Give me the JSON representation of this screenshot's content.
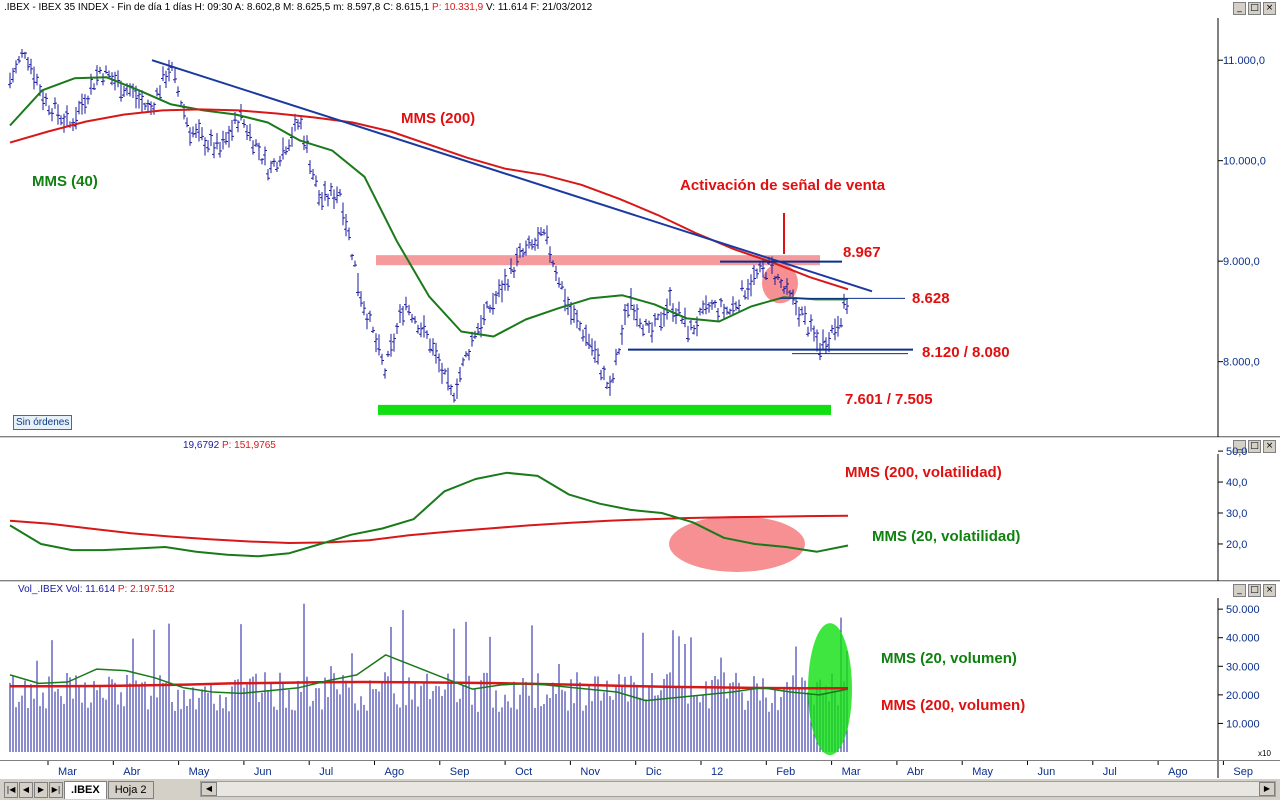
{
  "header_main": {
    "prefix": ".IBEX - IBEX 35 INDEX - Fin de día 1 días  H: 09:30  A: 8.602,8  M: 8.625,5  m: 8.597,8  C: 8.615,1",
    "p_text": "P: 10.331,9",
    "suffix": "V: 11.614  F: 21/03/2012"
  },
  "header_vol": {
    "value": "19,6792",
    "p_text": "P: 151,9765"
  },
  "header_volume": {
    "name": "Vol_.IBEX  Vol: 11.614",
    "p_text": "P: 2.197.512"
  },
  "badge": "Sin órdenes",
  "window_buttons": [
    "_",
    "□",
    "×"
  ],
  "nav_buttons": [
    "|◀",
    "◀",
    "▶",
    "▶|"
  ],
  "sheet_tabs": [
    ".IBEX",
    "Hoja 2"
  ],
  "colors": {
    "bars": "#1a1aa0",
    "mms40": "#1a7a1a",
    "mms200": "#d81818",
    "trend": "#1a3aa0",
    "annot": "#e01010",
    "green_annot": "#108010"
  },
  "chart_data": [
    {
      "type": "line",
      "title": "",
      "xlabel": "",
      "ylabel": "",
      "x_ticks": [
        "Mar",
        "Abr",
        "May",
        "Jun",
        "Jul",
        "Ago",
        "Sep",
        "Oct",
        "Nov",
        "Dic",
        "12",
        "Feb",
        "Mar",
        "Abr",
        "May",
        "Jun",
        "Jul",
        "Ago",
        "Sep"
      ],
      "y_ticks": [
        8000,
        9000,
        10000,
        11000
      ],
      "y_tick_labels": [
        "8.000,0",
        "9.000,0",
        "10.000,0",
        "11.000,0"
      ],
      "ylim": [
        7300,
        11400
      ],
      "series": [
        {
          "name": "MMS (40)",
          "values": [
            10350,
            10700,
            10820,
            10830,
            10700,
            10560,
            10500,
            10460,
            10380,
            10200,
            10100,
            9840,
            9200,
            8650,
            8300,
            8250,
            8420,
            8530,
            8630,
            8660,
            8570,
            8430,
            8400,
            8550,
            8640,
            8620,
            8620
          ]
        },
        {
          "name": "MMS (200)",
          "values": [
            10180,
            10290,
            10390,
            10460,
            10500,
            10510,
            10500,
            10470,
            10430,
            10380,
            10290,
            10160,
            10030,
            9920,
            9860,
            9760,
            9620,
            9460,
            9280,
            9120,
            8990,
            8840,
            8720
          ]
        }
      ],
      "annotations": [
        {
          "text": "MMS (200)",
          "color": "#e01010"
        },
        {
          "text": "MMS (40)",
          "color": "#108010"
        },
        {
          "text": "Activación de señal de venta",
          "color": "#e01010"
        },
        {
          "text": "8.967",
          "value": 8967,
          "color": "#e01010"
        },
        {
          "text": "8.628",
          "value": 8628,
          "color": "#e01010"
        },
        {
          "text": "8.120 / 8.080",
          "value": 8120,
          "color": "#e01010"
        },
        {
          "text": "7.601 / 7.505",
          "value": 7550,
          "color": "#e01010"
        }
      ]
    },
    {
      "type": "line",
      "title": "",
      "y_ticks": [
        20,
        30,
        40,
        50
      ],
      "y_tick_labels": [
        "20,0",
        "30,0",
        "40,0",
        "50,0"
      ],
      "ylim": [
        9,
        51
      ],
      "series": [
        {
          "name": "MMS (200, volatilidad)",
          "values": [
            27.5,
            26.5,
            25,
            23.5,
            22.4,
            21.5,
            20.8,
            20.3,
            20.5,
            21.2,
            22.8,
            24.0,
            25.0,
            26.0,
            26.8,
            27.5,
            28.0,
            28.4,
            28.6,
            28.8,
            29.0,
            29.1
          ]
        },
        {
          "name": "MMS (20, volatilidad)",
          "values": [
            26,
            20,
            18,
            18,
            18.5,
            19,
            17.5,
            16.5,
            16,
            17,
            20,
            23,
            25,
            28,
            37,
            41,
            43,
            42,
            36,
            33,
            31,
            30,
            27,
            22,
            20,
            19,
            17.5,
            19.5
          ]
        }
      ],
      "annotations": [
        {
          "text": "MMS (200, volatilidad)",
          "color": "#e01010"
        },
        {
          "text": "MMS (20, volatilidad)",
          "color": "#108010"
        }
      ]
    },
    {
      "type": "bar",
      "title": "",
      "y_ticks": [
        10000,
        20000,
        30000,
        40000,
        50000
      ],
      "y_tick_labels": [
        "10.000",
        "20.000",
        "30.000",
        "40.000",
        "50.000"
      ],
      "ylim": [
        0,
        56000
      ],
      "multiplier_label": "x10",
      "series": [
        {
          "name": "MMS (20, volumen)",
          "values": [
            27000,
            24000,
            24500,
            29000,
            28500,
            26000,
            22500,
            21000,
            20500,
            21500,
            22500,
            25000,
            27000,
            34000,
            30000,
            26000,
            22000,
            23500,
            24000,
            23000,
            22000,
            21000,
            18000,
            19000,
            20000,
            21000,
            22500,
            21000,
            20000,
            22000
          ]
        },
        {
          "name": "MMS (200, volumen)",
          "values": [
            23000,
            23000,
            23100,
            23300,
            23600,
            24000,
            24200,
            24400,
            24500,
            24400,
            24300,
            24100,
            23800,
            23500,
            23100,
            22800,
            22600,
            22400,
            22300,
            22300
          ]
        }
      ],
      "annotations": [
        {
          "text": "MMS (20, volumen)",
          "color": "#108010"
        },
        {
          "text": "MMS (200, volumen)",
          "color": "#e01010"
        }
      ]
    }
  ]
}
